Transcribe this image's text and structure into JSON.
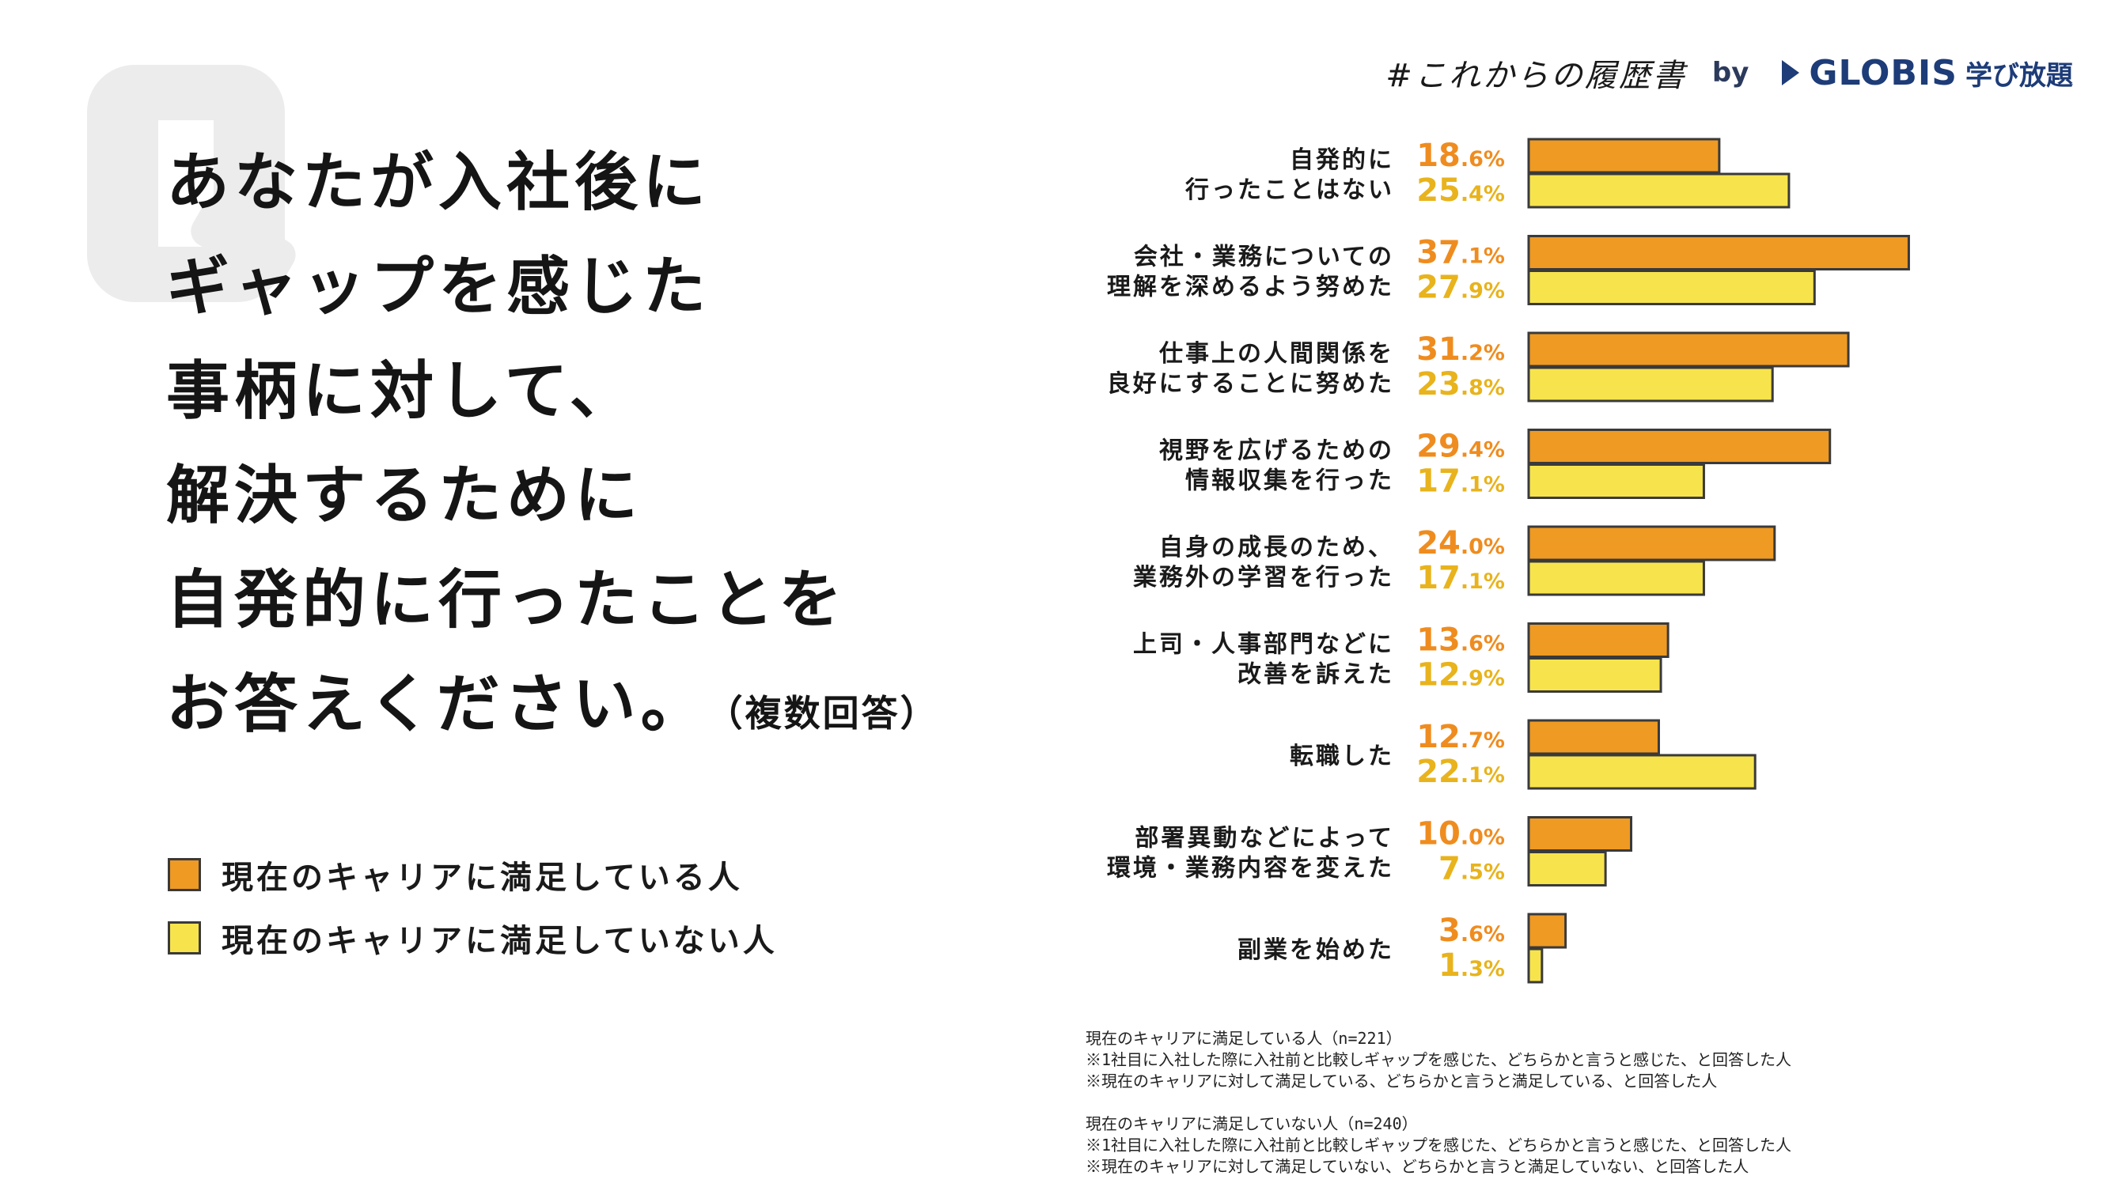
{
  "brand": {
    "hashtag": "#これからの履歴書",
    "by": "by",
    "logo": "GLOBIS",
    "service": "学び放題"
  },
  "question": {
    "lines": [
      "あなたが入社後に",
      "ギャップを感じた",
      "事柄に対して、",
      "解決するために",
      "自発的に行ったことを",
      "お答えください。"
    ],
    "note": "（複数回答）"
  },
  "legend": [
    {
      "label": "現在のキャリアに満足している人",
      "color": "#ef9a23"
    },
    {
      "label": "現在のキャリアに満足していない人",
      "color": "#f7e44c"
    }
  ],
  "colors": {
    "satisfied_bar": "#ef9a23",
    "unsatisfied_bar": "#f7e44c",
    "satisfied_text": "#ef8c1f",
    "unsatisfied_text": "#e8b31c",
    "bar_border": "#3a3a3a",
    "q_mark": "#ececec"
  },
  "chart_data": {
    "type": "bar",
    "orientation": "horizontal",
    "categories": [
      [
        "自発的に",
        "行ったことはない"
      ],
      [
        "会社・業務についての",
        "理解を深めるよう努めた"
      ],
      [
        "仕事上の人間関係を",
        "良好にすることに努めた"
      ],
      [
        "視野を広げるための",
        "情報収集を行った"
      ],
      [
        "自身の成長のため、",
        "業務外の学習を行った"
      ],
      [
        "上司・人事部門などに",
        "改善を訴えた"
      ],
      [
        "転職した"
      ],
      [
        "部署異動などによって",
        "環境・業務内容を変えた"
      ],
      [
        "副業を始めた"
      ]
    ],
    "series": [
      {
        "values": [
          18.6,
          37.1,
          31.2,
          29.4,
          24.0,
          13.6,
          12.7,
          10.0,
          3.6
        ],
        "labels": [
          "18.6%",
          "37.1%",
          "31.2%",
          "29.4%",
          "24.0%",
          "13.6%",
          "12.7%",
          "10.0%",
          "3.6%"
        ]
      },
      {
        "values": [
          25.4,
          27.9,
          23.8,
          17.1,
          17.1,
          12.9,
          22.1,
          7.5,
          1.3
        ],
        "labels": [
          "25.4%",
          "27.9%",
          "23.8%",
          "17.1%",
          "17.1%",
          "12.9%",
          "22.1%",
          "7.5%",
          "1.3%"
        ]
      }
    ],
    "xlim": [
      0,
      40
    ],
    "grid": false,
    "legend": "left"
  },
  "notes": {
    "satisfied": [
      "現在のキャリアに満足している人（n=221）",
      "※1社目に入社した際に入社前と比較しギャップを感じた、どちらかと言うと感じた、と回答した人",
      "※現在のキャリアに対して満足している、どちらかと言うと満足している、と回答した人"
    ],
    "unsatisfied": [
      "現在のキャリアに満足していない人（n=240）",
      "※1社目に入社した際に入社前と比較しギャップを感じた、どちらかと言うと感じた、と回答した人",
      "※現在のキャリアに対して満足していない、どちらかと言うと満足していない、と回答した人"
    ]
  }
}
